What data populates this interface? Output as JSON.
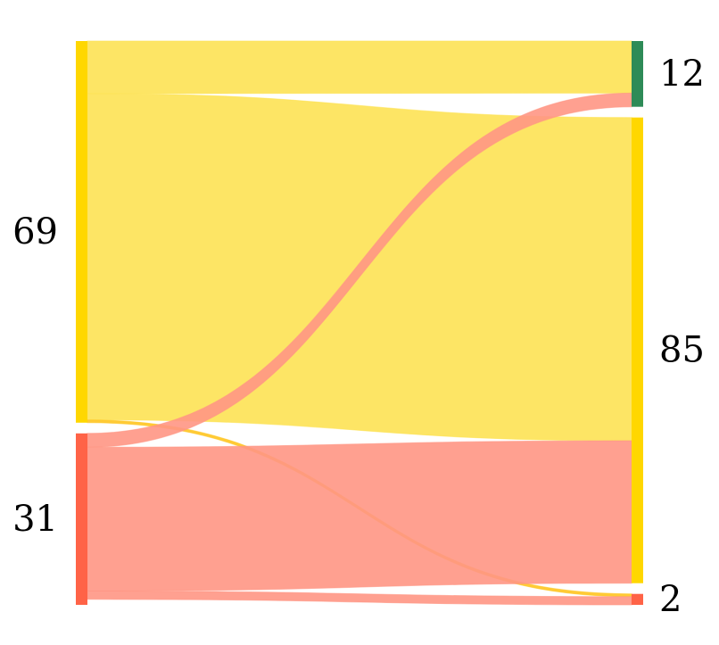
{
  "chart_data": {
    "type": "sankey",
    "left_nodes": [
      {
        "id": "L1",
        "value": 69,
        "label": "69",
        "color": "#FFD700"
      },
      {
        "id": "L2",
        "value": 31,
        "label": "31",
        "color": "#FF6347"
      }
    ],
    "right_nodes": [
      {
        "id": "R1",
        "value": 12,
        "label": "12",
        "color": "#2E8B57"
      },
      {
        "id": "R2",
        "value": 85,
        "label": "85",
        "color": "#FFD700"
      },
      {
        "id": "R3",
        "value": 2,
        "label": "2",
        "color": "#FF6347"
      }
    ],
    "links": [
      {
        "source": "L1",
        "target": "R1",
        "value": 9.5,
        "color": "#FDE254"
      },
      {
        "source": "L1",
        "target": "R2",
        "value": 59,
        "color": "#FDE254"
      },
      {
        "source": "L1",
        "target": "R3",
        "value": 0.5,
        "color": "#FFC520"
      },
      {
        "source": "L2",
        "target": "R1",
        "value": 2.5,
        "color": "#FF9684"
      },
      {
        "source": "L2",
        "target": "R2",
        "value": 26,
        "color": "#FF9684"
      },
      {
        "source": "L2",
        "target": "R3",
        "value": 1.5,
        "color": "#FF9684"
      }
    ]
  }
}
